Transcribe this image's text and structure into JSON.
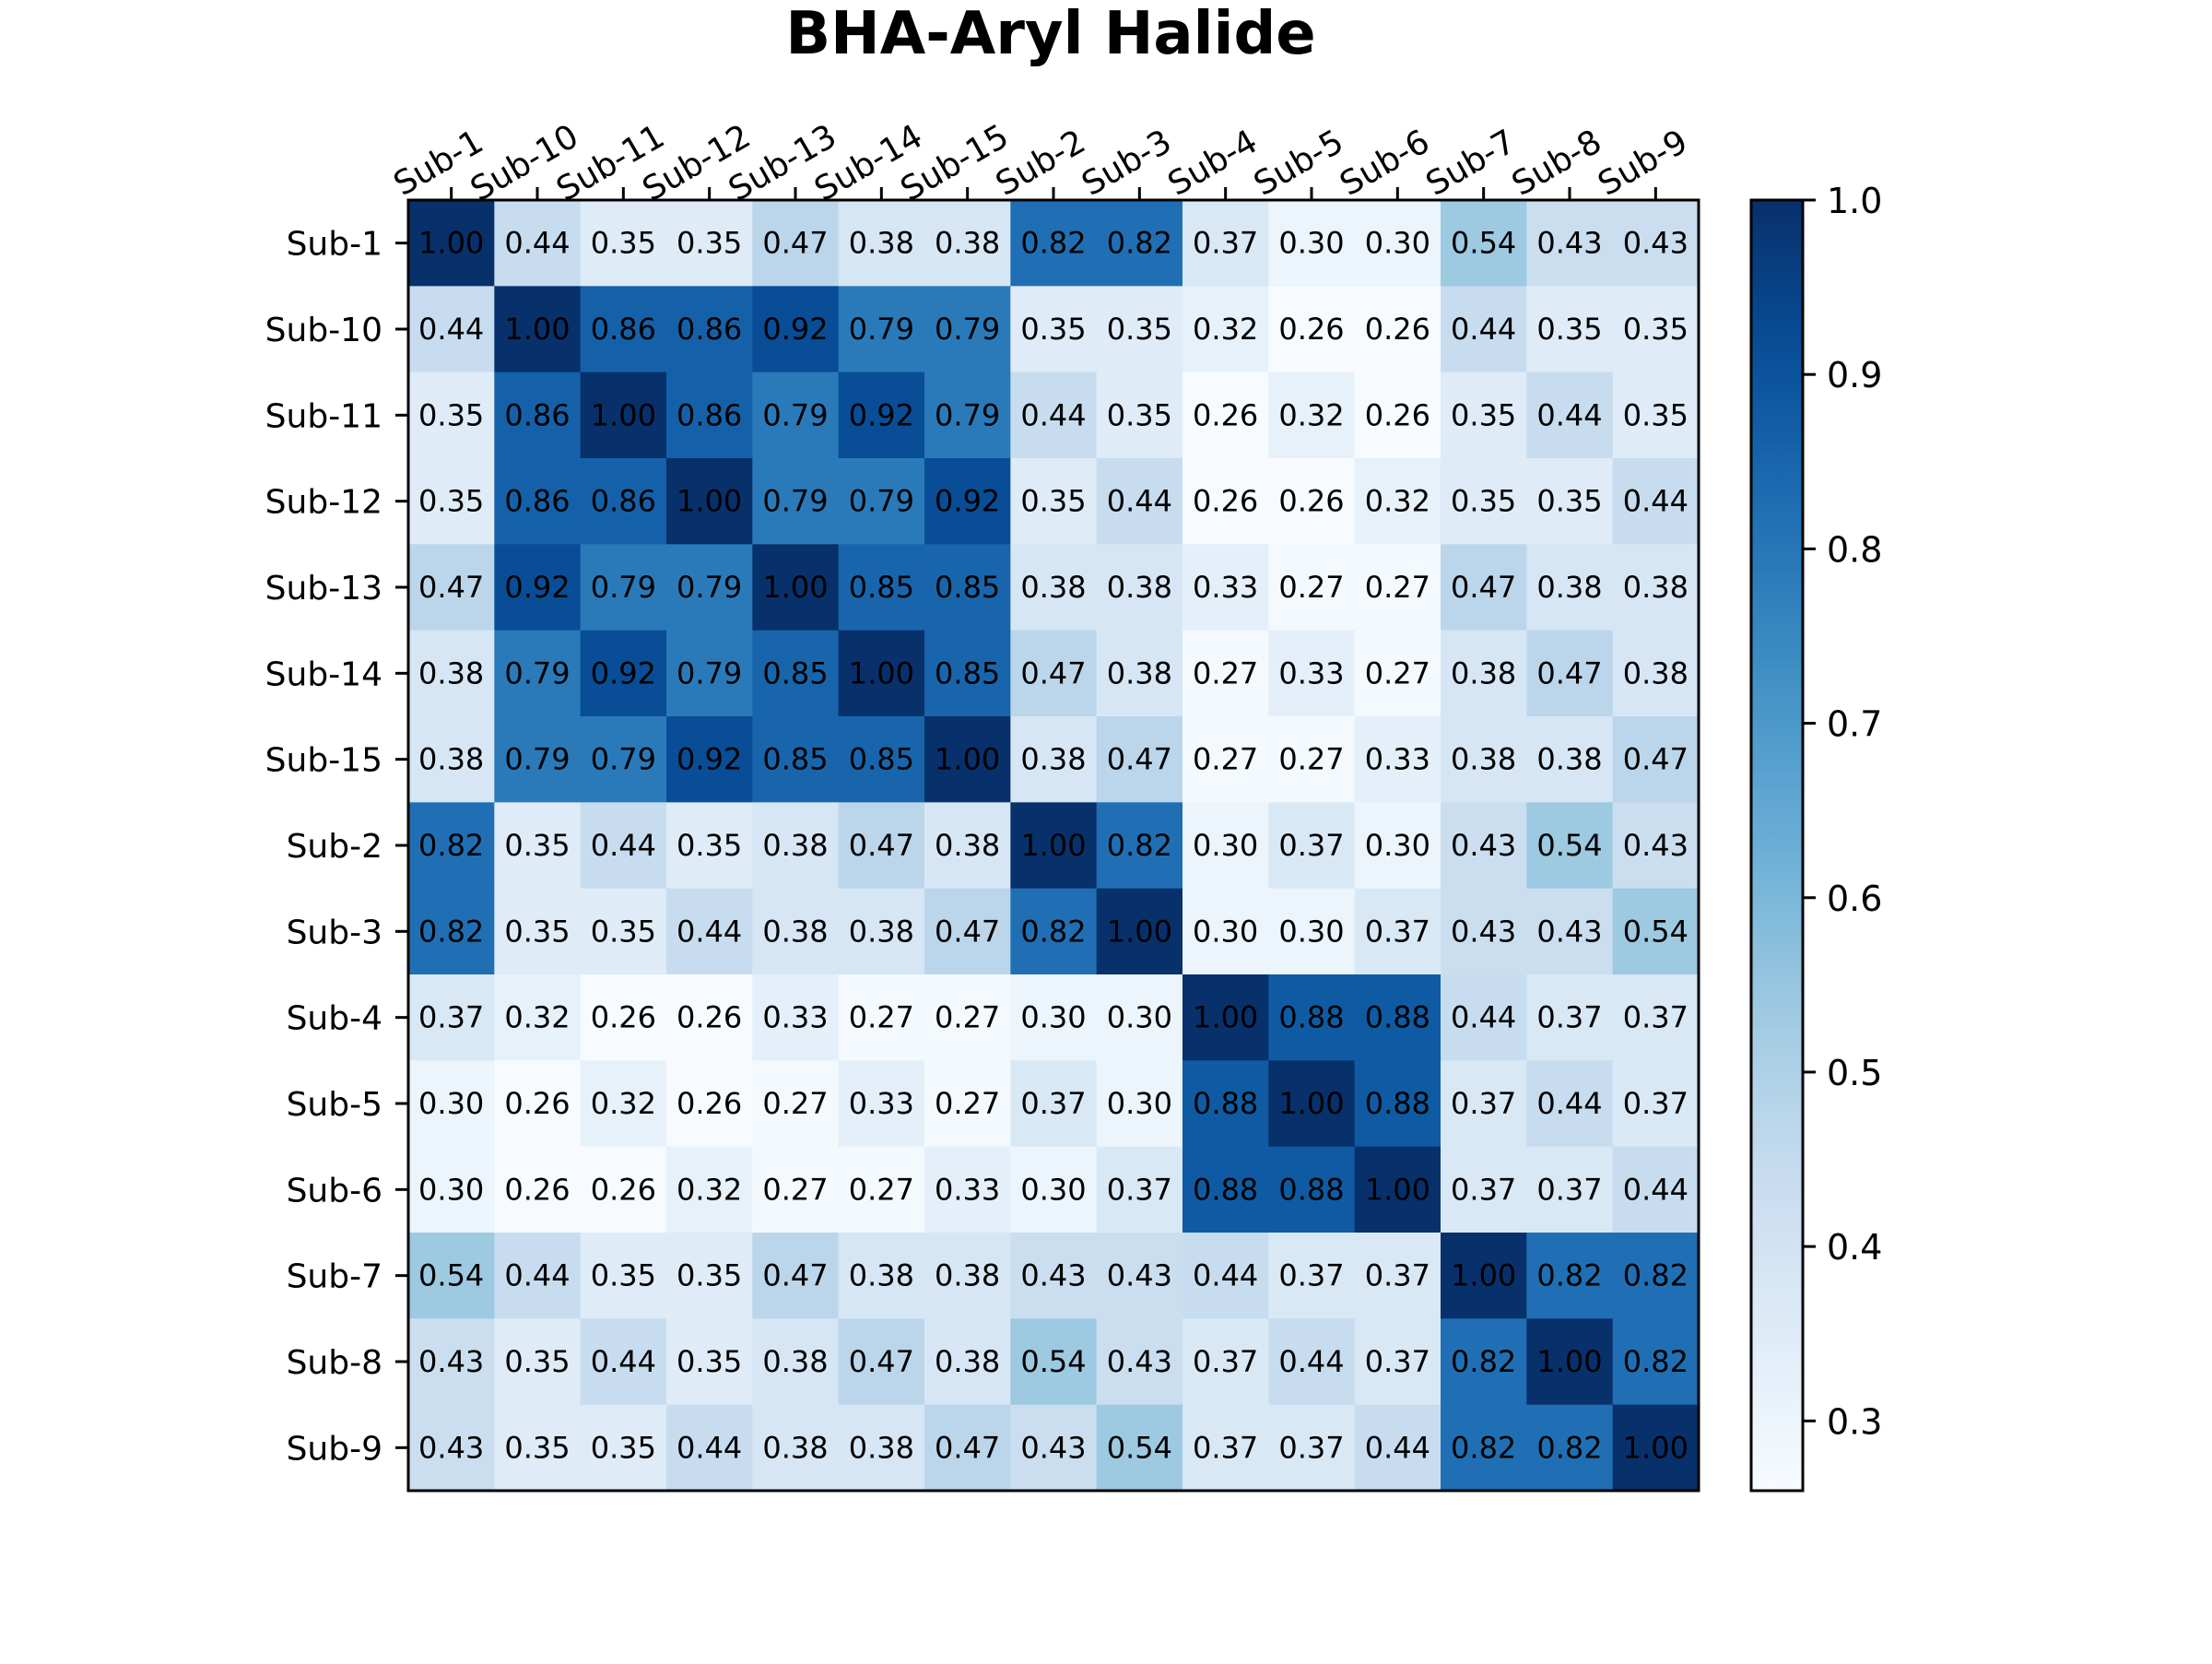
{
  "chart_data": {
    "type": "heatmap",
    "title": "BHA-Aryl Halide",
    "xlabel": "",
    "ylabel": "",
    "x_categories": [
      "Sub-1",
      "Sub-10",
      "Sub-11",
      "Sub-12",
      "Sub-13",
      "Sub-14",
      "Sub-15",
      "Sub-2",
      "Sub-3",
      "Sub-4",
      "Sub-5",
      "Sub-6",
      "Sub-7",
      "Sub-8",
      "Sub-9"
    ],
    "y_categories": [
      "Sub-1",
      "Sub-10",
      "Sub-11",
      "Sub-12",
      "Sub-13",
      "Sub-14",
      "Sub-15",
      "Sub-2",
      "Sub-3",
      "Sub-4",
      "Sub-5",
      "Sub-6",
      "Sub-7",
      "Sub-8",
      "Sub-9"
    ],
    "values": [
      [
        1.0,
        0.44,
        0.35,
        0.35,
        0.47,
        0.38,
        0.38,
        0.82,
        0.82,
        0.37,
        0.3,
        0.3,
        0.54,
        0.43,
        0.43
      ],
      [
        0.44,
        1.0,
        0.86,
        0.86,
        0.92,
        0.79,
        0.79,
        0.35,
        0.35,
        0.32,
        0.26,
        0.26,
        0.44,
        0.35,
        0.35
      ],
      [
        0.35,
        0.86,
        1.0,
        0.86,
        0.79,
        0.92,
        0.79,
        0.44,
        0.35,
        0.26,
        0.32,
        0.26,
        0.35,
        0.44,
        0.35
      ],
      [
        0.35,
        0.86,
        0.86,
        1.0,
        0.79,
        0.79,
        0.92,
        0.35,
        0.44,
        0.26,
        0.26,
        0.32,
        0.35,
        0.35,
        0.44
      ],
      [
        0.47,
        0.92,
        0.79,
        0.79,
        1.0,
        0.85,
        0.85,
        0.38,
        0.38,
        0.33,
        0.27,
        0.27,
        0.47,
        0.38,
        0.38
      ],
      [
        0.38,
        0.79,
        0.92,
        0.79,
        0.85,
        1.0,
        0.85,
        0.47,
        0.38,
        0.27,
        0.33,
        0.27,
        0.38,
        0.47,
        0.38
      ],
      [
        0.38,
        0.79,
        0.79,
        0.92,
        0.85,
        0.85,
        1.0,
        0.38,
        0.47,
        0.27,
        0.27,
        0.33,
        0.38,
        0.38,
        0.47
      ],
      [
        0.82,
        0.35,
        0.44,
        0.35,
        0.38,
        0.47,
        0.38,
        1.0,
        0.82,
        0.3,
        0.37,
        0.3,
        0.43,
        0.54,
        0.43
      ],
      [
        0.82,
        0.35,
        0.35,
        0.44,
        0.38,
        0.38,
        0.47,
        0.82,
        1.0,
        0.3,
        0.3,
        0.37,
        0.43,
        0.43,
        0.54
      ],
      [
        0.37,
        0.32,
        0.26,
        0.26,
        0.33,
        0.27,
        0.27,
        0.3,
        0.3,
        1.0,
        0.88,
        0.88,
        0.44,
        0.37,
        0.37
      ],
      [
        0.3,
        0.26,
        0.32,
        0.26,
        0.27,
        0.33,
        0.27,
        0.37,
        0.3,
        0.88,
        1.0,
        0.88,
        0.37,
        0.44,
        0.37
      ],
      [
        0.3,
        0.26,
        0.26,
        0.32,
        0.27,
        0.27,
        0.33,
        0.3,
        0.37,
        0.88,
        0.88,
        1.0,
        0.37,
        0.37,
        0.44
      ],
      [
        0.54,
        0.44,
        0.35,
        0.35,
        0.47,
        0.38,
        0.38,
        0.43,
        0.43,
        0.44,
        0.37,
        0.37,
        1.0,
        0.82,
        0.82
      ],
      [
        0.43,
        0.35,
        0.44,
        0.35,
        0.38,
        0.47,
        0.38,
        0.54,
        0.43,
        0.37,
        0.44,
        0.37,
        0.82,
        1.0,
        0.82
      ],
      [
        0.43,
        0.35,
        0.35,
        0.44,
        0.38,
        0.38,
        0.47,
        0.43,
        0.54,
        0.37,
        0.37,
        0.44,
        0.82,
        0.82,
        1.0
      ]
    ],
    "value_format": "2 decimals",
    "colormap": "Blues",
    "color_range": [
      0.26,
      1.0
    ],
    "colorbar_ticks": [
      1.0,
      0.9,
      0.8,
      0.7,
      0.6,
      0.5,
      0.4,
      0.3
    ],
    "colorbar_tick_labels": [
      "1.0",
      "0.9",
      "0.8",
      "0.7",
      "0.6",
      "0.5",
      "0.4",
      "0.3"
    ],
    "x_ticks_position": "top",
    "grid": false,
    "legend": "colorbar-right"
  }
}
